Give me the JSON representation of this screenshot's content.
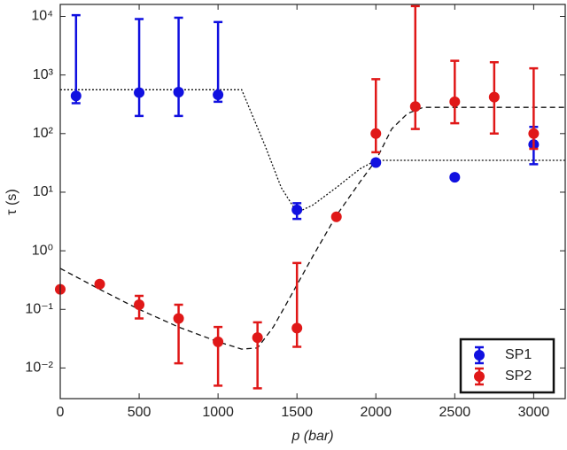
{
  "chart_data": {
    "type": "scatter",
    "xlabel": "p (bar)",
    "ylabel": "τ (s)",
    "xlim": [
      0,
      3200
    ],
    "xticks": [
      0,
      500,
      1000,
      1500,
      2000,
      2500,
      3000
    ],
    "ylim": [
      0.003,
      16000
    ],
    "yscale": "log",
    "yticks": [
      {
        "value": 0.01,
        "label": "10⁻²"
      },
      {
        "value": 0.1,
        "label": "10⁻¹"
      },
      {
        "value": 1,
        "label": "10⁰"
      },
      {
        "value": 10,
        "label": "10¹"
      },
      {
        "value": 100,
        "label": "10²"
      },
      {
        "value": 1000,
        "label": "10³"
      },
      {
        "value": 10000,
        "label": "10⁴"
      }
    ],
    "legend": "lower right",
    "series": [
      {
        "name": "SP1",
        "color": "#1010e0",
        "x": [
          100,
          500,
          750,
          1000,
          1500,
          2000,
          2500,
          3000
        ],
        "values": [
          440,
          500,
          510,
          460,
          5,
          32,
          18,
          65
        ],
        "yerr_lower": [
          330,
          200,
          200,
          350,
          3.5,
          null,
          null,
          30
        ],
        "yerr_upper": [
          10500,
          9000,
          9500,
          8000,
          6.5,
          null,
          null,
          130
        ]
      },
      {
        "name": "SP2",
        "color": "#e01818",
        "x": [
          0,
          250,
          500,
          750,
          1000,
          1250,
          1500,
          1750,
          2000,
          2250,
          2500,
          2750,
          3000
        ],
        "values": [
          0.22,
          0.27,
          0.12,
          0.07,
          0.028,
          0.033,
          0.048,
          3.8,
          100,
          290,
          350,
          420,
          100
        ],
        "yerr_lower": [
          null,
          null,
          0.07,
          0.012,
          0.005,
          0.0045,
          0.023,
          null,
          48,
          120,
          150,
          100,
          55
        ],
        "yerr_upper": [
          null,
          null,
          0.17,
          0.12,
          0.05,
          0.06,
          0.62,
          null,
          850,
          15000,
          1750,
          1650,
          1300
        ]
      }
    ],
    "fit_lines": [
      {
        "style": "dotted",
        "x": [
          0,
          1150,
          1300,
          1400,
          1500,
          1600,
          1750,
          1900,
          2000,
          3200
        ],
        "values": [
          560,
          560,
          60,
          12,
          4.5,
          6,
          12,
          25,
          35,
          35
        ]
      },
      {
        "style": "dashed",
        "x": [
          0,
          250,
          500,
          750,
          1000,
          1150,
          1250,
          1350,
          1450,
          1600,
          1750,
          1900,
          2000,
          2100,
          2200,
          2300,
          3200
        ],
        "values": [
          0.5,
          0.22,
          0.1,
          0.05,
          0.028,
          0.021,
          0.022,
          0.05,
          0.15,
          0.8,
          4,
          15,
          35,
          120,
          220,
          280,
          280
        ]
      }
    ]
  }
}
